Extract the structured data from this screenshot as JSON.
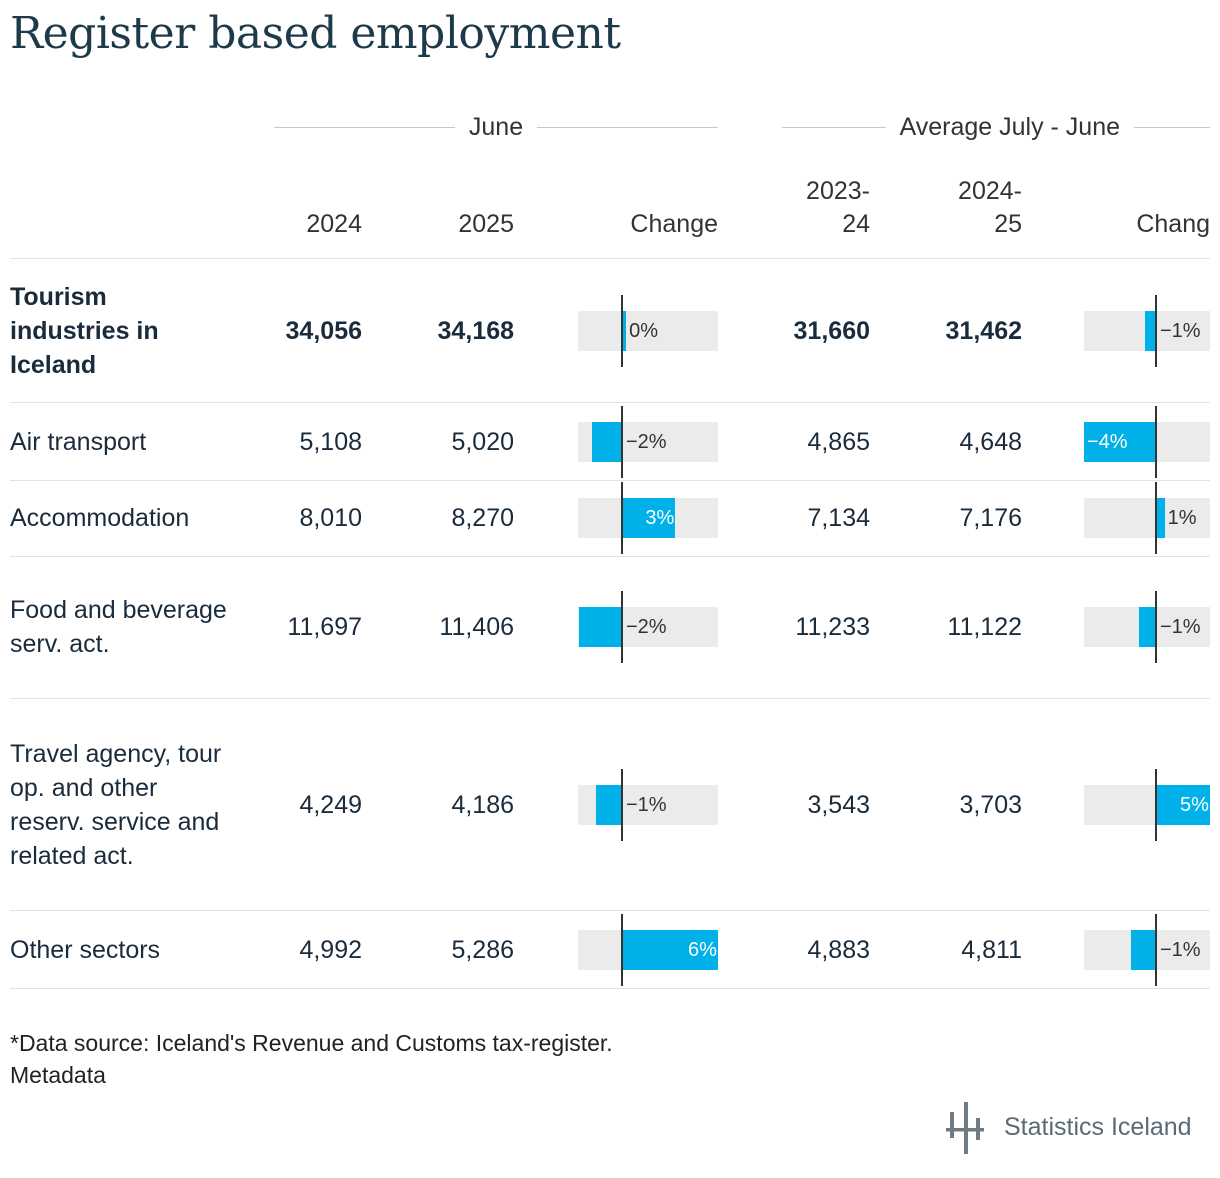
{
  "title": "Register based employment",
  "groups": {
    "june": "June",
    "average": "Average July - June"
  },
  "columns": {
    "y2024": "2024",
    "y2025": "2025",
    "change_june": "Change",
    "avg1_line1": "2023-",
    "avg1_line2": "24",
    "avg2_line1": "2024-",
    "avg2_line2": "25",
    "change_avg": "Chang"
  },
  "chart_data": {
    "type": "table",
    "rows": [
      {
        "label": "Tourism industries in Iceland",
        "bold": true,
        "june_2024": "34,056",
        "june_2025": "34,168",
        "change_june": 0.3,
        "change_june_label": "0%",
        "avg_2023_24": "31,660",
        "avg_2024_25": "31,462",
        "change_avg": -0.6,
        "change_avg_label": "−1%"
      },
      {
        "label": "Air transport",
        "bold": false,
        "june_2024": "5,108",
        "june_2025": "5,020",
        "change_june": -1.7,
        "change_june_label": "−2%",
        "avg_2023_24": "4,865",
        "avg_2024_25": "4,648",
        "change_avg": -4.5,
        "change_avg_label": "−4%"
      },
      {
        "label": "Accommodation",
        "bold": false,
        "june_2024": "8,010",
        "june_2025": "8,270",
        "change_june": 3.2,
        "change_june_label": "3%",
        "avg_2023_24": "7,134",
        "avg_2024_25": "7,176",
        "change_avg": 0.6,
        "change_avg_label": "1%"
      },
      {
        "label": "Food and beverage serv. act.",
        "bold": false,
        "june_2024": "11,697",
        "june_2025": "11,406",
        "change_june": -2.5,
        "change_june_label": "−2%",
        "avg_2023_24": "11,233",
        "avg_2024_25": "11,122",
        "change_avg": -1.0,
        "change_avg_label": "−1%"
      },
      {
        "label": "Travel agency, tour op. and other reserv. service and related act.",
        "bold": false,
        "june_2024": "4,249",
        "june_2025": "4,186",
        "change_june": -1.5,
        "change_june_label": "−1%",
        "avg_2023_24": "3,543",
        "avg_2024_25": "3,703",
        "change_avg": 4.5,
        "change_avg_label": "5%"
      },
      {
        "label": "Other sectors",
        "bold": false,
        "june_2024": "4,992",
        "june_2025": "5,286",
        "change_june": 5.9,
        "change_june_label": "6%",
        "avg_2023_24": "4,883",
        "avg_2024_25": "4,811",
        "change_avg": -1.5,
        "change_avg_label": "−1%"
      }
    ],
    "change_axis_range": [
      -2.6,
      5.9
    ]
  },
  "footer": {
    "source": "*Data source: Iceland's Revenue and Customs tax-register.",
    "metadata": "Metadata",
    "brand": "Statistics Iceland"
  },
  "colors": {
    "bar": "#00b0e8",
    "bar_bg": "#ebebeb",
    "title": "#1d3a4a"
  }
}
